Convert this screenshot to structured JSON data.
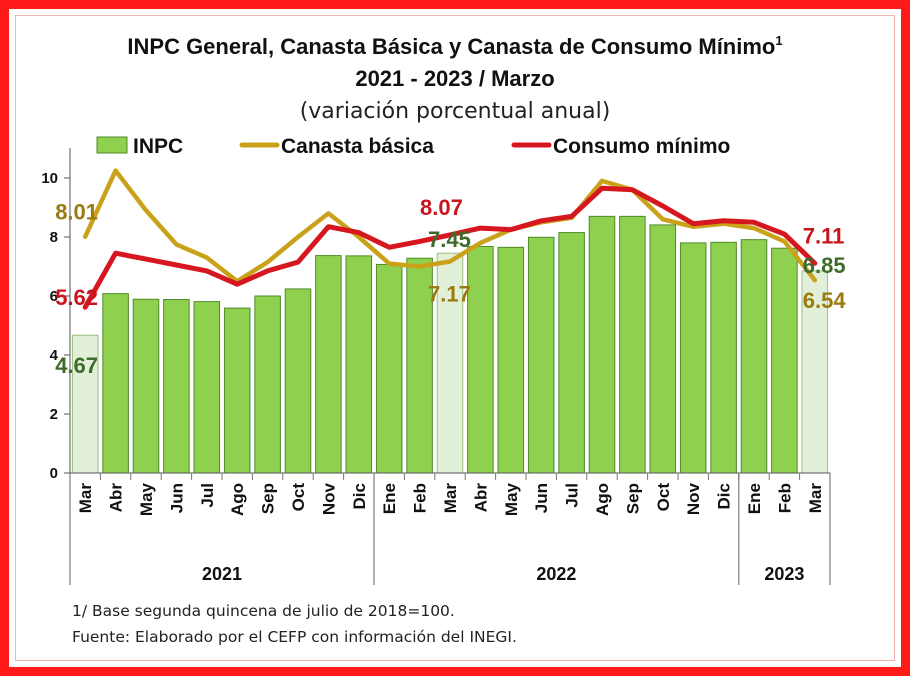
{
  "chart_data": {
    "type": "bar",
    "title": "INPC General, Canasta Básica  y Canasta de Consumo Mínimo",
    "title_sup": "1",
    "subtitle_period": "2021 - 2023 / Marzo",
    "subtitle_units": "(variación porcentual anual)",
    "ylim": [
      0,
      10
    ],
    "yticks": [
      "0",
      "2",
      "4",
      "6",
      "8",
      "10"
    ],
    "grid": false,
    "legend_placement": "top",
    "categories": [
      "Mar",
      "Abr",
      "May",
      "Jun",
      "Jul",
      "Ago",
      "Sep",
      "Oct",
      "Nov",
      "Dic",
      "Ene",
      "Feb",
      "Mar",
      "Abr",
      "May",
      "Jun",
      "Jul",
      "Ago",
      "Sep",
      "Oct",
      "Nov",
      "Dic",
      "Ene",
      "Feb",
      "Mar"
    ],
    "year_groups": [
      {
        "label": "2021",
        "start": 0,
        "end": 9
      },
      {
        "label": "2022",
        "start": 10,
        "end": 21
      },
      {
        "label": "2023",
        "start": 22,
        "end": 24
      }
    ],
    "series": [
      {
        "name": "INPC",
        "kind": "bar",
        "color": "#8fd14f",
        "light_color": "#e2efd9",
        "values": [
          4.67,
          6.08,
          5.89,
          5.88,
          5.81,
          5.59,
          6.0,
          6.24,
          7.37,
          7.36,
          7.07,
          7.28,
          7.45,
          7.68,
          7.65,
          7.99,
          8.15,
          8.7,
          8.7,
          8.41,
          7.8,
          7.82,
          7.91,
          7.62,
          6.85
        ],
        "highlight_indices": [
          0,
          12,
          24
        ]
      },
      {
        "name": "Canasta básica",
        "kind": "line",
        "color": "#c9a21a",
        "values": [
          8.01,
          10.25,
          8.9,
          7.75,
          7.3,
          6.5,
          7.15,
          8.0,
          8.8,
          8.0,
          7.1,
          7.0,
          7.17,
          7.8,
          8.25,
          8.5,
          8.65,
          9.9,
          9.6,
          8.6,
          8.35,
          8.45,
          8.3,
          7.85,
          6.54
        ]
      },
      {
        "name": "Consumo mínimo",
        "kind": "line",
        "color": "#d7171f",
        "values": [
          5.62,
          7.45,
          7.25,
          7.05,
          6.85,
          6.4,
          6.85,
          7.15,
          8.35,
          8.15,
          7.65,
          7.85,
          8.07,
          8.3,
          8.25,
          8.55,
          8.7,
          9.65,
          9.6,
          9.05,
          8.45,
          8.55,
          8.5,
          8.1,
          7.11
        ]
      }
    ],
    "data_labels": [
      {
        "text": "8.01",
        "series": "Canasta básica",
        "index": 0,
        "color": "#9a7b0e"
      },
      {
        "text": "5.62",
        "series": "Consumo mínimo",
        "index": 0,
        "color": "#c8141c"
      },
      {
        "text": "4.67",
        "series": "INPC",
        "index": 0,
        "color": "#3c6b2a"
      },
      {
        "text": "8.07",
        "series": "Consumo mínimo",
        "index": 12,
        "color": "#c8141c"
      },
      {
        "text": "7.45",
        "series": "INPC",
        "index": 12,
        "color": "#3c6b2a"
      },
      {
        "text": "7.17",
        "series": "Canasta básica",
        "index": 12,
        "color": "#9a7b0e"
      },
      {
        "text": "7.11",
        "series": "Consumo mínimo",
        "index": 24,
        "color": "#c8141c"
      },
      {
        "text": "6.85",
        "series": "INPC",
        "index": 24,
        "color": "#3c6b2a"
      },
      {
        "text": "6.54",
        "series": "Canasta básica",
        "index": 24,
        "color": "#9a7b0e"
      }
    ]
  },
  "footnote": "1/ Base segunda quincena de julio de 2018=100.",
  "source": "Fuente: Elaborado por el CEFP con información del INEGI.",
  "frame_color": "#ff1a1a"
}
